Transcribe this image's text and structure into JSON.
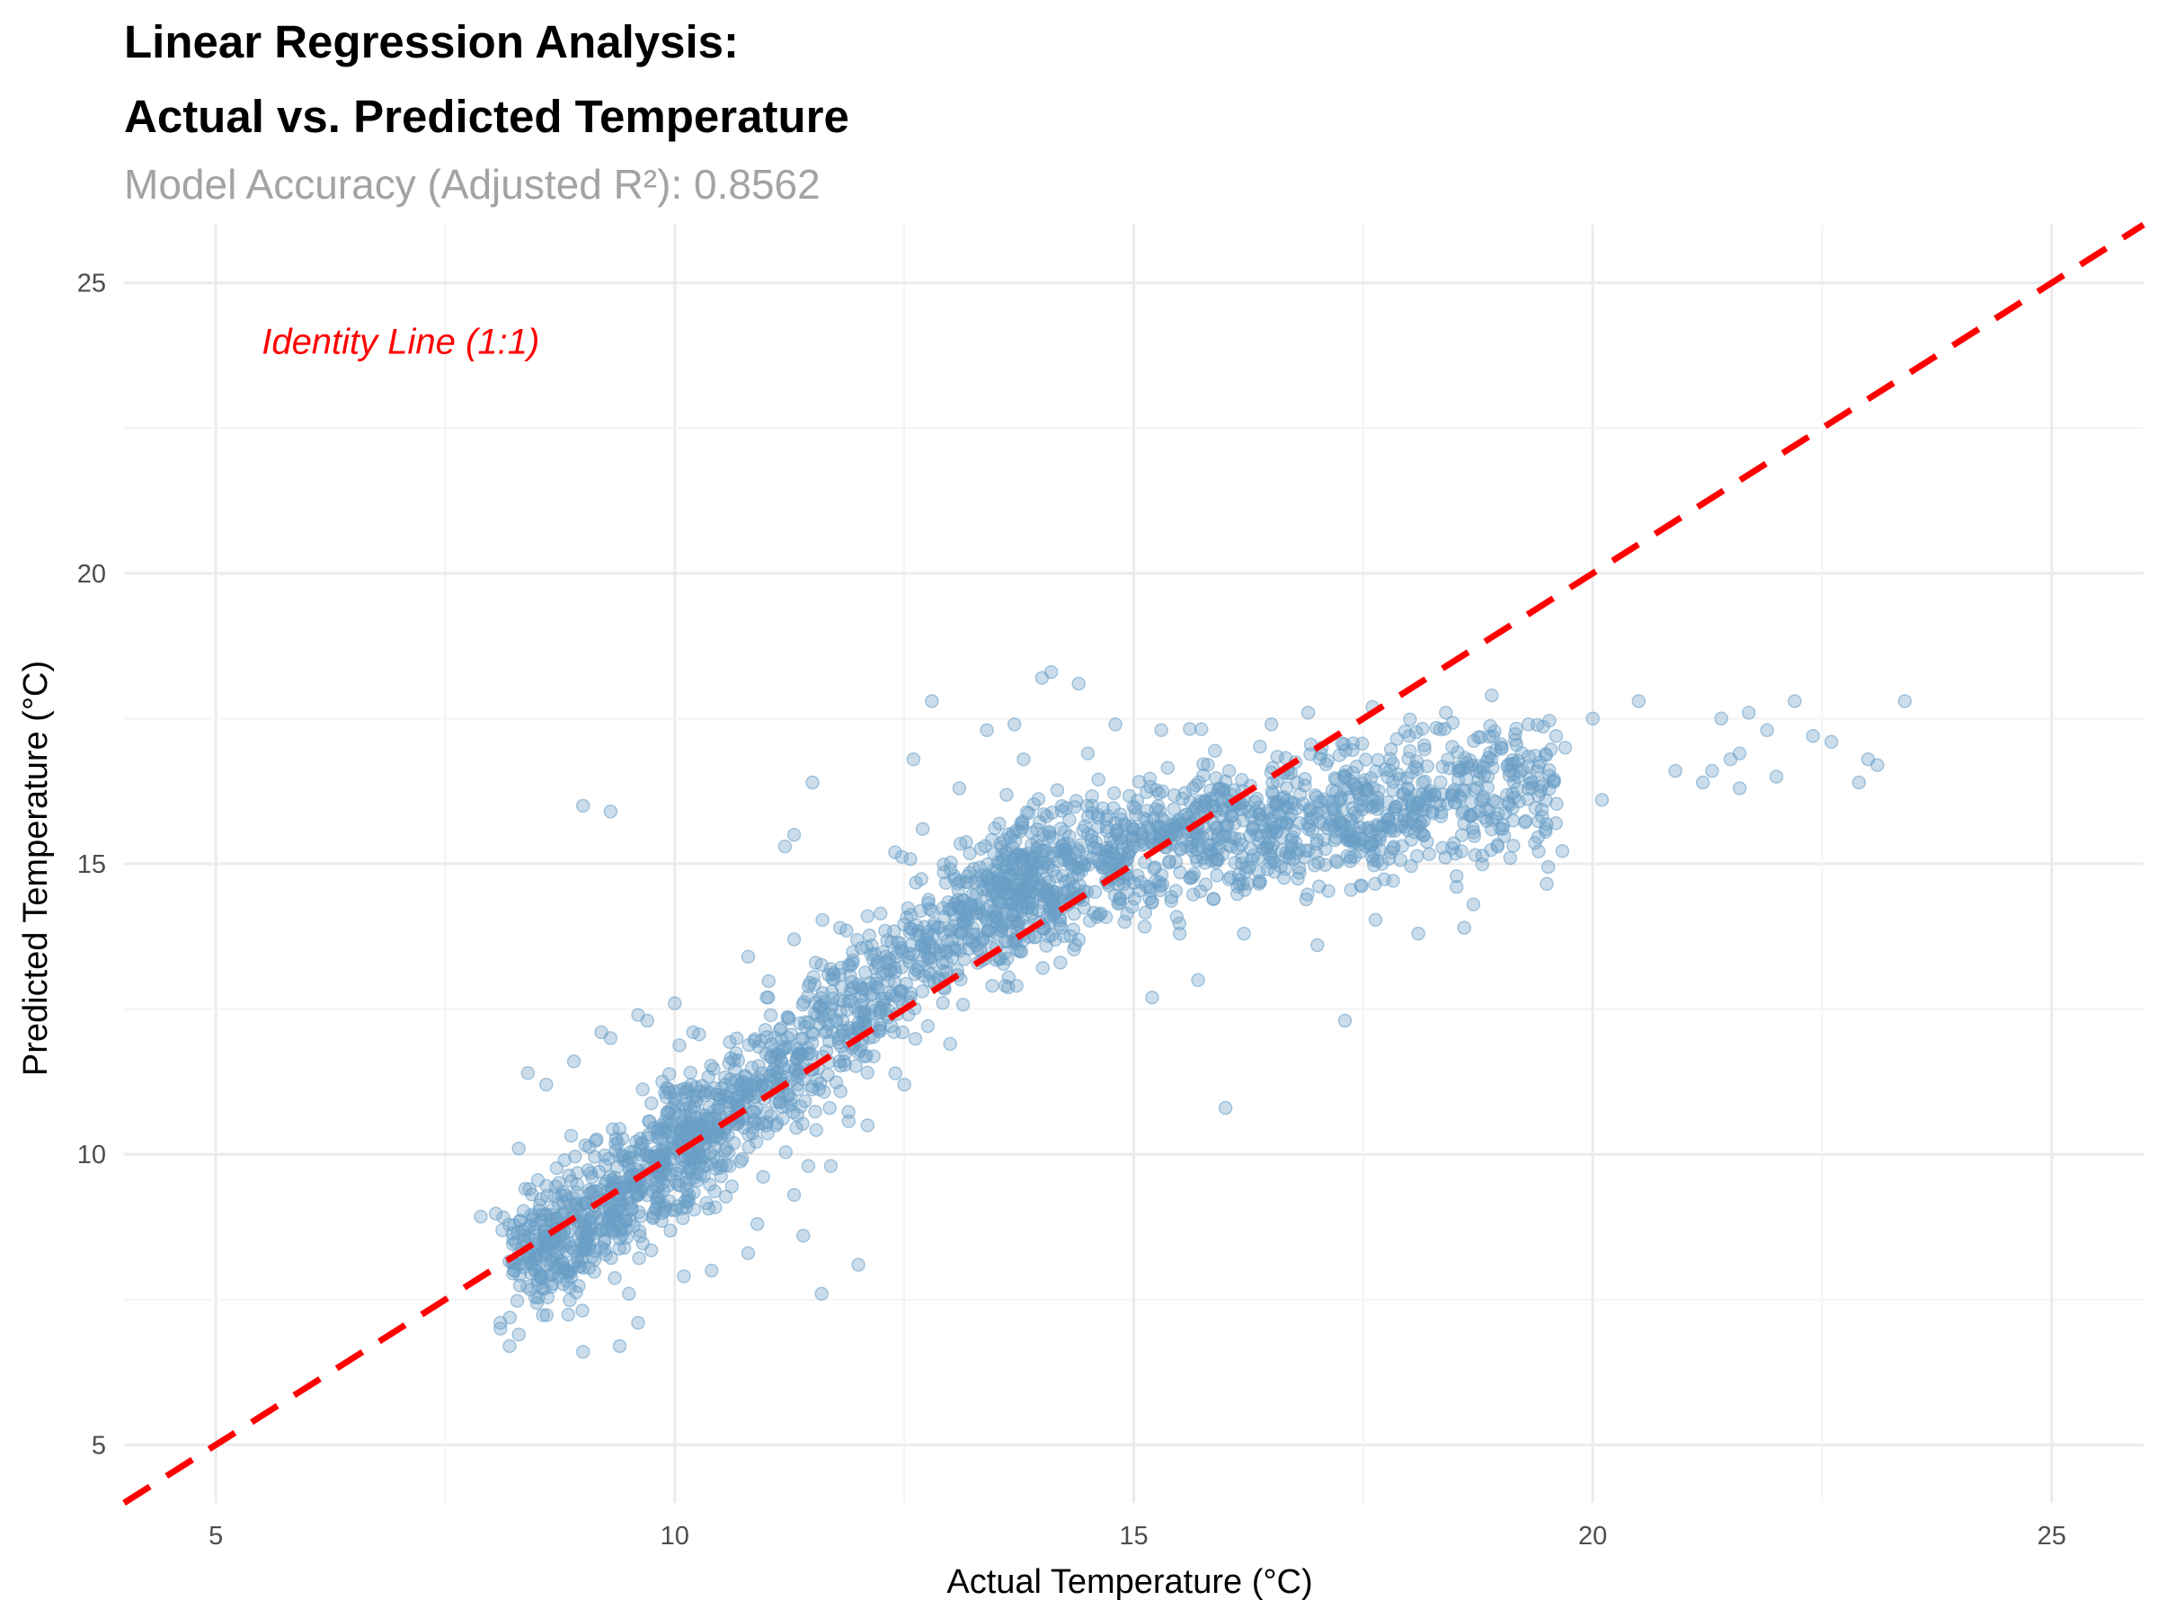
{
  "chart_data": {
    "type": "scatter",
    "title_line1": "Linear Regression Analysis:",
    "title_line2": "Actual vs. Predicted Temperature",
    "subtitle": "Model Accuracy (Adjusted R²): 0.8562",
    "xlabel": "Actual Temperature (°C)",
    "ylabel": "Predicted Temperature (°C)",
    "xlim": [
      4,
      26
    ],
    "ylim": [
      4,
      26
    ],
    "x_ticks": [
      5,
      10,
      15,
      20,
      25
    ],
    "y_ticks": [
      5,
      10,
      15,
      20,
      25
    ],
    "grid": true,
    "point_color": "#6A9EC7",
    "point_opacity": 0.35,
    "reference_line": {
      "name": "Identity Line (1:1)",
      "slope": 1,
      "intercept": 0,
      "color": "#FF0000",
      "style": "dashed"
    },
    "annotation": {
      "text": "Identity Line (1:1)",
      "x": 5.5,
      "y": 24,
      "color": "#FF0000"
    },
    "series": [
      {
        "points": [
          [
            8.1,
            7.0
          ],
          [
            8.2,
            6.7
          ],
          [
            8.3,
            6.9
          ],
          [
            8.1,
            7.1
          ],
          [
            9.0,
            6.6
          ],
          [
            9.4,
            6.7
          ],
          [
            9.6,
            7.1
          ],
          [
            9.3,
            15.9
          ],
          [
            9.0,
            16.0
          ],
          [
            11.6,
            7.6
          ],
          [
            16.0,
            10.8
          ],
          [
            17.3,
            12.3
          ],
          [
            15.2,
            12.7
          ],
          [
            15.7,
            13.0
          ],
          [
            14.1,
            18.3
          ],
          [
            14.0,
            18.2
          ],
          [
            14.4,
            18.1
          ],
          [
            12.8,
            17.8
          ],
          [
            11.5,
            16.4
          ],
          [
            11.3,
            15.5
          ],
          [
            11.2,
            15.3
          ],
          [
            10.0,
            12.6
          ],
          [
            9.7,
            12.3
          ],
          [
            9.2,
            12.1
          ],
          [
            8.6,
            11.2
          ],
          [
            8.3,
            10.1
          ],
          [
            12.0,
            8.1
          ],
          [
            11.4,
            8.6
          ],
          [
            10.8,
            8.3
          ],
          [
            10.4,
            8.0
          ],
          [
            10.1,
            7.9
          ],
          [
            9.5,
            7.6
          ],
          [
            20.5,
            17.8
          ],
          [
            20.0,
            17.5
          ],
          [
            21.4,
            17.5
          ],
          [
            21.7,
            17.6
          ],
          [
            22.2,
            17.8
          ],
          [
            22.9,
            16.4
          ],
          [
            23.0,
            16.8
          ],
          [
            23.1,
            16.7
          ],
          [
            23.4,
            17.8
          ],
          [
            22.6,
            17.1
          ],
          [
            22.4,
            17.2
          ],
          [
            21.9,
            17.3
          ],
          [
            21.3,
            16.6
          ],
          [
            21.6,
            16.9
          ],
          [
            21.2,
            16.4
          ],
          [
            19.7,
            17.0
          ],
          [
            19.3,
            17.4
          ],
          [
            18.9,
            17.9
          ],
          [
            18.4,
            17.6
          ],
          [
            18.0,
            17.2
          ],
          [
            17.6,
            17.7
          ],
          [
            16.9,
            17.6
          ],
          [
            16.5,
            17.4
          ],
          [
            15.3,
            17.3
          ],
          [
            14.8,
            17.4
          ],
          [
            13.7,
            17.4
          ],
          [
            13.4,
            17.3
          ],
          [
            12.6,
            16.8
          ],
          [
            18.6,
            13.9
          ],
          [
            18.1,
            13.8
          ],
          [
            17.0,
            13.6
          ],
          [
            16.2,
            13.8
          ],
          [
            15.5,
            13.8
          ],
          [
            14.9,
            14.0
          ],
          [
            14.2,
            13.3
          ],
          [
            13.6,
            12.9
          ],
          [
            13.0,
            11.9
          ],
          [
            12.5,
            11.2
          ],
          [
            12.1,
            10.5
          ],
          [
            11.7,
            9.8
          ],
          [
            11.3,
            9.3
          ],
          [
            10.9,
            8.8
          ],
          [
            8.4,
            11.4
          ],
          [
            8.9,
            11.6
          ],
          [
            9.3,
            12.0
          ],
          [
            9.6,
            12.4
          ],
          [
            10.2,
            12.1
          ],
          [
            11.0,
            12.7
          ],
          [
            10.8,
            13.4
          ],
          [
            11.3,
            13.7
          ],
          [
            11.8,
            13.9
          ],
          [
            12.1,
            14.1
          ],
          [
            12.4,
            15.2
          ],
          [
            12.7,
            15.6
          ],
          [
            13.1,
            16.3
          ],
          [
            13.8,
            16.8
          ],
          [
            14.5,
            16.9
          ],
          [
            15.6,
            15.8
          ],
          [
            16.7,
            15.1
          ],
          [
            17.8,
            15.2
          ],
          [
            18.7,
            14.3
          ],
          [
            19.1,
            15.1
          ],
          [
            19.6,
            15.7
          ],
          [
            20.1,
            16.1
          ],
          [
            20.9,
            16.6
          ],
          [
            21.6,
            16.3
          ],
          [
            21.5,
            16.8
          ],
          [
            22.0,
            16.5
          ]
        ]
      }
    ]
  }
}
